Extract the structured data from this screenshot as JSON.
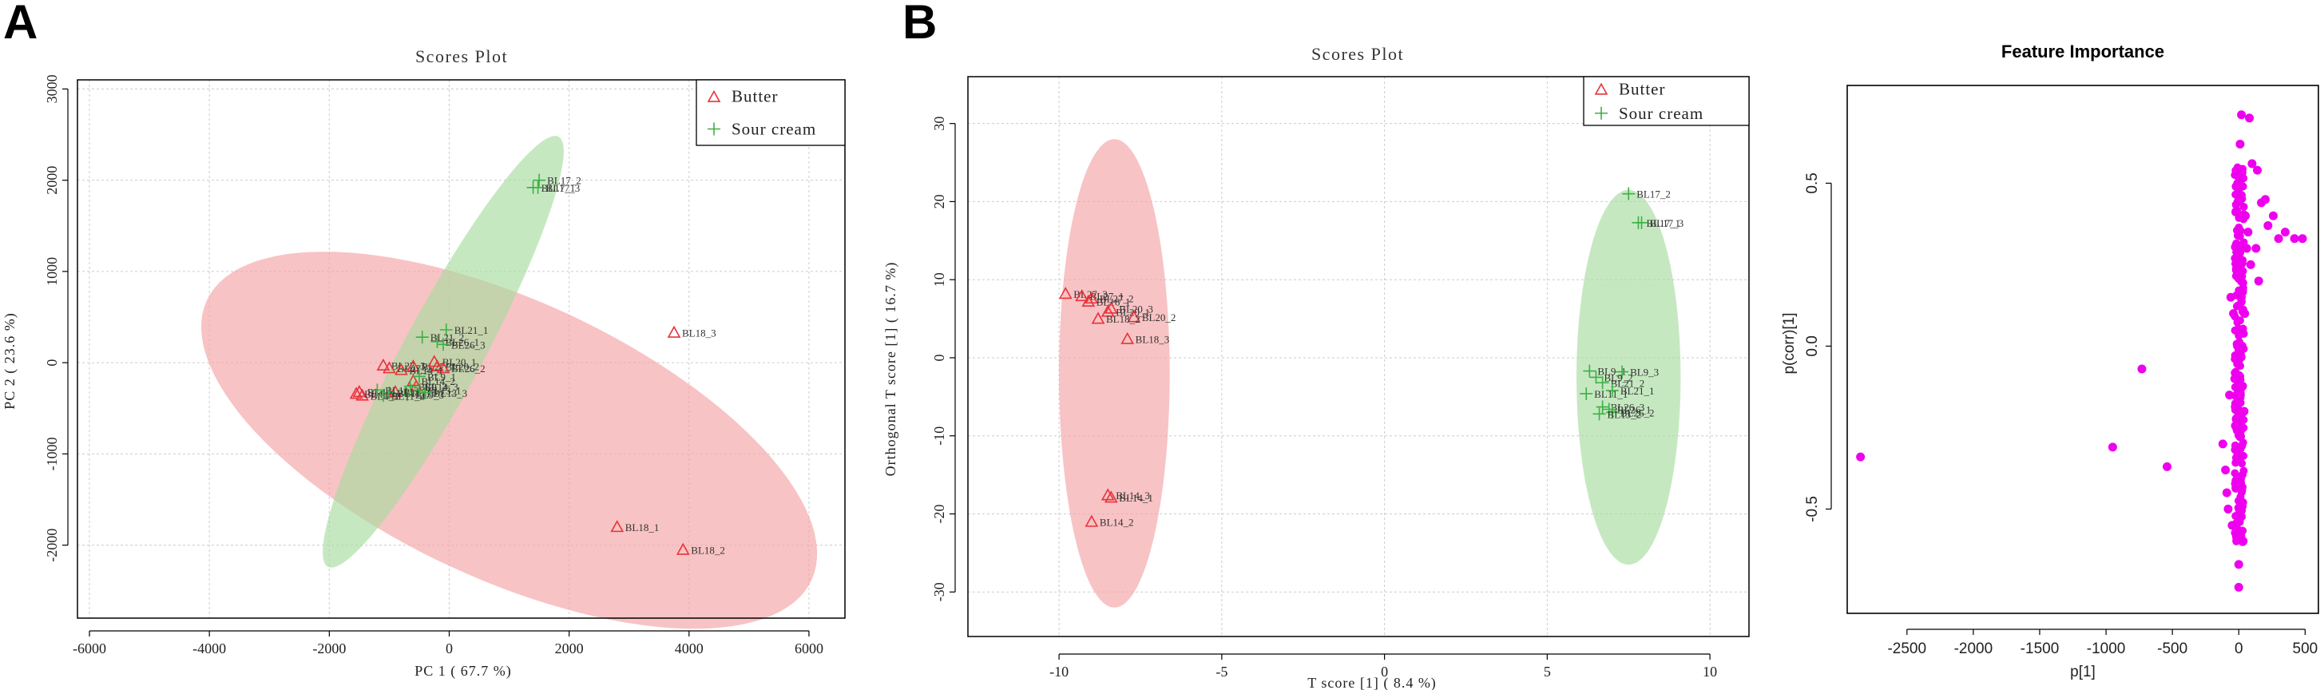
{
  "panel_letters": [
    "A",
    "B"
  ],
  "colors": {
    "butter": "#e8323a",
    "sour_cream": "#3cb043",
    "butter_ellipse": "#f4a3a5",
    "sour_ellipse": "#a8dba0",
    "importance_points": "#ee00ee",
    "grid": "#cccccc"
  },
  "chart_data": [
    {
      "id": "pca",
      "type": "scatter",
      "title": "Scores Plot",
      "xlabel": "PC 1 ( 67.7 %)",
      "ylabel": "PC 2 ( 23.6 %)",
      "xlim": [
        -6200,
        6600
      ],
      "ylim": [
        -2800,
        3100
      ],
      "xticks": [
        -6000,
        -4000,
        -2000,
        0,
        2000,
        4000,
        6000
      ],
      "yticks": [
        -2000,
        -1000,
        0,
        1000,
        2000,
        3000
      ],
      "legend": {
        "position": "top-right",
        "entries": [
          "Butter",
          "Sour cream"
        ]
      },
      "ellipses": [
        {
          "group": "Butter",
          "cx": 1000,
          "cy": -850,
          "rx": 5300,
          "ry": 1600,
          "angle_deg": -15
        },
        {
          "group": "Sour cream",
          "cx": -100,
          "cy": 120,
          "rx": 3050,
          "ry": 580,
          "angle_deg": 50
        }
      ],
      "series": [
        {
          "name": "Butter",
          "marker": "triangle",
          "points": [
            {
              "x": 3750,
              "y": 330,
              "label": "BL18_3"
            },
            {
              "x": 2800,
              "y": -1800,
              "label": "BL18_1"
            },
            {
              "x": 3900,
              "y": -2050,
              "label": "BL18_2"
            },
            {
              "x": -1100,
              "y": -30,
              "label": "BL27_3"
            },
            {
              "x": -1000,
              "y": -60,
              "label": "BL27_2"
            },
            {
              "x": -600,
              "y": -40,
              "label": "BL27_1"
            },
            {
              "x": -250,
              "y": 10,
              "label": "BL20_1"
            },
            {
              "x": -200,
              "y": -40,
              "label": "BL20_2"
            },
            {
              "x": -100,
              "y": -60,
              "label": "BL26_2"
            },
            {
              "x": -800,
              "y": -80,
              "label": "BL14_1"
            },
            {
              "x": -600,
              "y": -200,
              "label": "BL14_2"
            },
            {
              "x": -550,
              "y": -260,
              "label": "BL14_3"
            },
            {
              "x": -1500,
              "y": -320,
              "label": "BL4_1"
            },
            {
              "x": -1450,
              "y": -360,
              "label": "BL4_2"
            },
            {
              "x": -1550,
              "y": -340,
              "label": "BL4_3"
            },
            {
              "x": -900,
              "y": -320,
              "label": "BL12_3"
            }
          ]
        },
        {
          "name": "Sour cream",
          "marker": "plus",
          "points": [
            {
              "x": 1500,
              "y": 2000,
              "label": "BL17_2"
            },
            {
              "x": 1400,
              "y": 1920,
              "label": "BL17_1"
            },
            {
              "x": 1480,
              "y": 1920,
              "label": "BL17_3"
            },
            {
              "x": -50,
              "y": 360,
              "label": "BL21_1"
            },
            {
              "x": -450,
              "y": 280,
              "label": "BL21_2"
            },
            {
              "x": -200,
              "y": 230,
              "label": "BL26_1"
            },
            {
              "x": -100,
              "y": 200,
              "label": "BL26_3"
            },
            {
              "x": -500,
              "y": -150,
              "label": "BL9_1"
            },
            {
              "x": -650,
              "y": -260,
              "label": "BL9_2"
            },
            {
              "x": -700,
              "y": -350,
              "label": "BL9_3"
            },
            {
              "x": -1000,
              "y": -330,
              "label": "BL11_1"
            },
            {
              "x": -1100,
              "y": -360,
              "label": "BL11_2"
            },
            {
              "x": -1200,
              "y": -300,
              "label": "BL11_3"
            },
            {
              "x": -500,
              "y": -300,
              "label": "BL13_1"
            },
            {
              "x": -400,
              "y": -330,
              "label": "BL13_3"
            }
          ]
        }
      ]
    },
    {
      "id": "opls",
      "type": "scatter",
      "title": "Scores Plot",
      "xlabel": "T score [1] ( 8.4 %)",
      "ylabel": "Orthogonal T score [1] ( 16.7 %)",
      "xlim": [
        -12.8,
        11.2
      ],
      "ylim": [
        -35.7,
        36
      ],
      "xticks": [
        -10,
        -5,
        0,
        5,
        10
      ],
      "yticks": [
        -30,
        -20,
        -10,
        0,
        10,
        20,
        30
      ],
      "legend": {
        "position": "top-right",
        "entries": [
          "Butter",
          "Sour cream"
        ]
      },
      "ellipses": [
        {
          "group": "Butter",
          "cx": -8.3,
          "cy": -2,
          "rx": 1.7,
          "ry": 30,
          "angle_deg": 0
        },
        {
          "group": "Sour cream",
          "cx": 7.5,
          "cy": -2.5,
          "rx": 1.6,
          "ry": 24,
          "angle_deg": 0
        }
      ],
      "series": [
        {
          "name": "Butter",
          "marker": "triangle",
          "points": [
            {
              "x": -9.8,
              "y": 8.2,
              "label": "BL27_3"
            },
            {
              "x": -9.3,
              "y": 7.9,
              "label": "BL27_1"
            },
            {
              "x": -9.0,
              "y": 7.6,
              "label": "BL27_2"
            },
            {
              "x": -9.1,
              "y": 7.2,
              "label": "BL18_1"
            },
            {
              "x": -8.4,
              "y": 6.3,
              "label": "BL20_3"
            },
            {
              "x": -8.5,
              "y": 5.9,
              "label": "BL20_1"
            },
            {
              "x": -7.7,
              "y": 5.2,
              "label": "BL20_2"
            },
            {
              "x": -8.8,
              "y": 5.0,
              "label": "BL18_2"
            },
            {
              "x": -7.9,
              "y": 2.4,
              "label": "BL18_3"
            },
            {
              "x": -8.5,
              "y": -17.6,
              "label": "BL14_3"
            },
            {
              "x": -8.4,
              "y": -17.9,
              "label": "BL14_1"
            },
            {
              "x": -9.0,
              "y": -21.0,
              "label": "BL14_2"
            }
          ]
        },
        {
          "name": "Sour cream",
          "marker": "plus",
          "points": [
            {
              "x": 7.5,
              "y": 21.0,
              "label": "BL17_2"
            },
            {
              "x": 7.8,
              "y": 17.3,
              "label": "BL17_1"
            },
            {
              "x": 7.9,
              "y": 17.3,
              "label": "BL17_3"
            },
            {
              "x": 6.3,
              "y": -1.7,
              "label": "BL9_1"
            },
            {
              "x": 7.3,
              "y": -1.8,
              "label": "BL9_3"
            },
            {
              "x": 6.5,
              "y": -2.5,
              "label": "BL9_2"
            },
            {
              "x": 6.7,
              "y": -3.2,
              "label": "BL21_2"
            },
            {
              "x": 7.0,
              "y": -4.2,
              "label": "BL21_1"
            },
            {
              "x": 6.2,
              "y": -4.6,
              "label": "BL11_1"
            },
            {
              "x": 6.7,
              "y": -6.3,
              "label": "BL26_3"
            },
            {
              "x": 6.9,
              "y": -6.6,
              "label": "BL26_1"
            },
            {
              "x": 7.0,
              "y": -7.0,
              "label": "BL26_2"
            },
            {
              "x": 6.6,
              "y": -7.2,
              "label": "BL13_2"
            }
          ]
        }
      ]
    },
    {
      "id": "importance",
      "type": "scatter",
      "title": "Feature Importance",
      "xlabel": "p[1]",
      "ylabel": "p(corr)[1]",
      "xlim": [
        -2950,
        600
      ],
      "ylim": [
        -0.82,
        0.8
      ],
      "xticks": [
        -2500,
        -2000,
        -1500,
        -1000,
        -500,
        0,
        500
      ],
      "yticks": [
        -0.5,
        0.0,
        0.5
      ],
      "ytick_labels": [
        "-0.5",
        "0.0",
        "0.5"
      ],
      "points": [
        {
          "x": -2850,
          "y": -0.34
        },
        {
          "x": -730,
          "y": -0.07
        },
        {
          "x": -950,
          "y": -0.31
        },
        {
          "x": -540,
          "y": -0.37
        },
        {
          "x": 20,
          "y": 0.71
        },
        {
          "x": 80,
          "y": 0.7
        },
        {
          "x": 100,
          "y": 0.56
        },
        {
          "x": 140,
          "y": 0.54
        },
        {
          "x": 170,
          "y": 0.44
        },
        {
          "x": 200,
          "y": 0.45
        },
        {
          "x": 220,
          "y": 0.37
        },
        {
          "x": 260,
          "y": 0.4
        },
        {
          "x": 300,
          "y": 0.33
        },
        {
          "x": 350,
          "y": 0.35
        },
        {
          "x": 420,
          "y": 0.33
        },
        {
          "x": 480,
          "y": 0.33
        },
        {
          "x": 130,
          "y": 0.3
        },
        {
          "x": 150,
          "y": 0.2
        },
        {
          "x": 90,
          "y": 0.25
        },
        {
          "x": 60,
          "y": 0.3
        },
        {
          "x": -120,
          "y": -0.3
        },
        {
          "x": -80,
          "y": -0.5
        },
        {
          "x": -90,
          "y": -0.45
        },
        {
          "x": -60,
          "y": 0.15
        },
        {
          "x": -40,
          "y": 0.1
        },
        {
          "x": 40,
          "y": -0.2
        },
        {
          "x": 30,
          "y": -0.6
        },
        {
          "x": 0,
          "y": -0.74
        },
        {
          "x": 0,
          "y": -0.67
        },
        {
          "x": 10,
          "y": 0.62
        },
        {
          "x": -20,
          "y": 0.49
        },
        {
          "x": -100,
          "y": -0.38
        },
        {
          "x": -70,
          "y": -0.15
        },
        {
          "x": -50,
          "y": -0.55
        },
        {
          "x": 50,
          "y": 0.4
        },
        {
          "x": 70,
          "y": 0.35
        },
        {
          "x": 45,
          "y": 0.1
        },
        {
          "x": -30,
          "y": -0.1
        },
        {
          "x": 25,
          "y": 0.0
        },
        {
          "x": -10,
          "y": 0.05
        }
      ],
      "dense_band": {
        "x_min": -30,
        "x_max": 40,
        "y_min": -0.6,
        "y_max": 0.55,
        "count": 260
      }
    }
  ]
}
